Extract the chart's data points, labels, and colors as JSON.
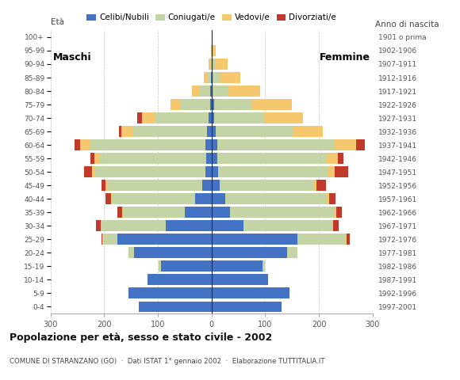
{
  "age_groups_bottom_to_top": [
    "0-4",
    "5-9",
    "10-14",
    "15-19",
    "20-24",
    "25-29",
    "30-34",
    "35-39",
    "40-44",
    "45-49",
    "50-54",
    "55-59",
    "60-64",
    "65-69",
    "70-74",
    "75-79",
    "80-84",
    "85-89",
    "90-94",
    "95-99",
    "100+"
  ],
  "birth_years_bottom_to_top": [
    "1997-2001",
    "1992-1996",
    "1987-1991",
    "1982-1986",
    "1977-1981",
    "1972-1976",
    "1967-1971",
    "1962-1966",
    "1957-1961",
    "1952-1956",
    "1947-1951",
    "1942-1946",
    "1937-1941",
    "1932-1936",
    "1927-1931",
    "1922-1926",
    "1917-1921",
    "1912-1916",
    "1907-1911",
    "1902-1906",
    "1901 o prima"
  ],
  "colors": {
    "celibi": "#4472c4",
    "coniugati": "#c5d4a5",
    "vedovi": "#f5c86e",
    "divorziati": "#c0392b"
  },
  "males_bottom_to_top": {
    "celibi": [
      135,
      155,
      120,
      95,
      145,
      175,
      85,
      50,
      30,
      18,
      12,
      10,
      12,
      8,
      5,
      3,
      2,
      1,
      0,
      0,
      0
    ],
    "coniugati": [
      0,
      0,
      0,
      3,
      10,
      28,
      120,
      115,
      155,
      175,
      205,
      200,
      215,
      140,
      100,
      55,
      22,
      8,
      3,
      1,
      0
    ],
    "vedovi": [
      0,
      0,
      0,
      0,
      0,
      0,
      2,
      2,
      3,
      4,
      6,
      8,
      18,
      20,
      25,
      18,
      12,
      5,
      2,
      0,
      0
    ],
    "divorziati": [
      0,
      0,
      0,
      0,
      0,
      2,
      8,
      8,
      10,
      8,
      15,
      8,
      10,
      5,
      8,
      0,
      0,
      0,
      0,
      0,
      0
    ]
  },
  "females_bottom_to_top": {
    "nubili": [
      130,
      145,
      105,
      95,
      140,
      160,
      60,
      35,
      25,
      15,
      12,
      10,
      10,
      7,
      5,
      4,
      2,
      1,
      0,
      0,
      0
    ],
    "coniugate": [
      0,
      0,
      0,
      5,
      20,
      90,
      165,
      195,
      190,
      175,
      205,
      205,
      220,
      145,
      95,
      70,
      28,
      14,
      8,
      2,
      0
    ],
    "vedove": [
      0,
      0,
      0,
      0,
      0,
      2,
      2,
      2,
      4,
      5,
      12,
      20,
      40,
      55,
      70,
      75,
      60,
      38,
      22,
      5,
      0
    ],
    "divorziate": [
      0,
      0,
      0,
      0,
      0,
      5,
      10,
      10,
      12,
      18,
      25,
      10,
      15,
      0,
      0,
      0,
      0,
      0,
      0,
      0,
      0
    ]
  },
  "title": "Popolazione per età, sesso e stato civile - 2002",
  "subtitle": "COMUNE DI STARANZANO (GO)  ·  Dati ISTAT 1° gennaio 2002  ·  Elaborazione TUTTITALIA.IT",
  "label_maschi": "Maschi",
  "label_femmine": "Femmine",
  "label_eta": "Età",
  "label_anno": "Anno di nascita",
  "xlim": 300,
  "legend_labels": [
    "Celibi/Nubili",
    "Coniugati/e",
    "Vedovi/e",
    "Divorziati/e"
  ],
  "xticks": [
    -300,
    -200,
    -100,
    0,
    100,
    200,
    300
  ]
}
